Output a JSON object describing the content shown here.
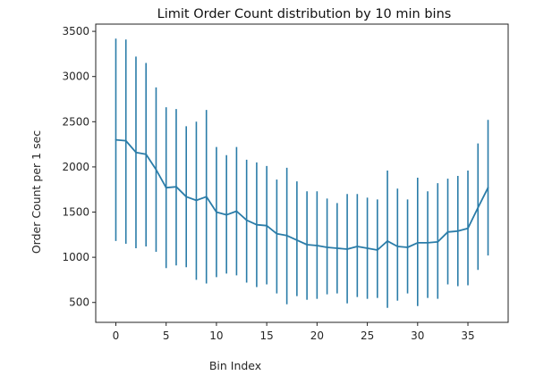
{
  "chart_data": {
    "type": "line",
    "title": "Limit Order Count distribution by 10 min bins",
    "xlabel": "Bin Index",
    "ylabel": "Order Count per 1 sec",
    "xlim": [
      -2,
      39
    ],
    "ylim": [
      280,
      3580
    ],
    "x_ticks": [
      0,
      5,
      10,
      15,
      20,
      25,
      30,
      35
    ],
    "y_ticks": [
      500,
      1000,
      1500,
      2000,
      2500,
      3000,
      3500
    ],
    "grid": false,
    "legend": false,
    "series": [
      {
        "color": "#2a7ca8",
        "x": [
          0,
          1,
          2,
          3,
          4,
          5,
          6,
          7,
          8,
          9,
          10,
          11,
          12,
          13,
          14,
          15,
          16,
          17,
          18,
          19,
          20,
          21,
          22,
          23,
          24,
          25,
          26,
          27,
          28,
          29,
          30,
          31,
          32,
          33,
          34,
          35,
          36,
          37
        ],
        "values": [
          2300,
          2290,
          2160,
          2140,
          1970,
          1770,
          1780,
          1670,
          1630,
          1670,
          1500,
          1470,
          1510,
          1410,
          1360,
          1350,
          1260,
          1240,
          1190,
          1140,
          1130,
          1110,
          1100,
          1090,
          1120,
          1100,
          1080,
          1180,
          1120,
          1110,
          1160,
          1160,
          1170,
          1280,
          1290,
          1320,
          1550,
          1770
        ],
        "error_low": [
          1180,
          1150,
          1100,
          1120,
          1060,
          880,
          910,
          890,
          750,
          710,
          780,
          820,
          800,
          720,
          670,
          700,
          600,
          480,
          570,
          530,
          540,
          590,
          600,
          490,
          560,
          540,
          550,
          440,
          520,
          600,
          460,
          550,
          540,
          700,
          680,
          690,
          860,
          1020
        ],
        "error_high": [
          3420,
          3410,
          3220,
          3150,
          2880,
          2660,
          2640,
          2450,
          2500,
          2630,
          2220,
          2130,
          2220,
          2080,
          2050,
          2010,
          1860,
          1990,
          1840,
          1730,
          1730,
          1650,
          1600,
          1700,
          1700,
          1660,
          1640,
          1960,
          1760,
          1640,
          1880,
          1730,
          1820,
          1870,
          1900,
          1960,
          2260,
          2520
        ]
      }
    ]
  }
}
